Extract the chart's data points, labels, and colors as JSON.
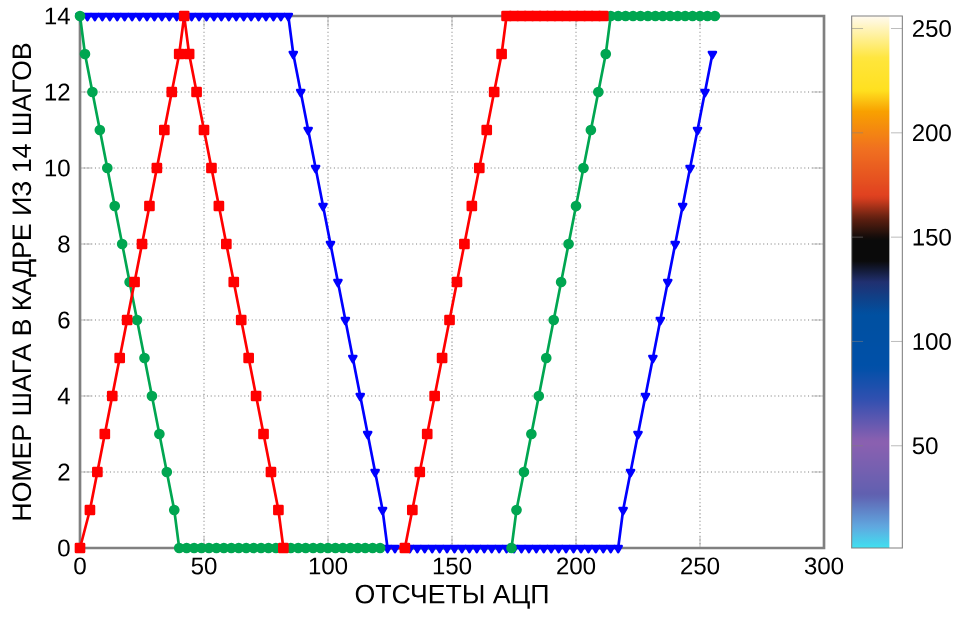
{
  "chart_data": {
    "type": "line",
    "xlabel": "ОТСЧЕТЫ АЦП",
    "ylabel": "НОМЕР ШАГА В КАДРЕ ИЗ 14 ШАГОВ",
    "xlim": [
      0,
      300
    ],
    "ylim": [
      0,
      14
    ],
    "xticks": [
      0,
      50,
      100,
      150,
      200,
      250,
      300
    ],
    "yticks": [
      0,
      2,
      4,
      6,
      8,
      10,
      12,
      14
    ],
    "grid": true,
    "clim": [
      1,
      256
    ],
    "cticks": [
      50,
      100,
      150,
      200,
      250
    ],
    "series": [
      {
        "color": "#0000ff",
        "marker": "triangle",
        "x": [
          0,
          3,
          6,
          9,
          12,
          15,
          18,
          21,
          24,
          27,
          30,
          33,
          36,
          39,
          42,
          45,
          48,
          51,
          54,
          57,
          60,
          63,
          66,
          69,
          72,
          75,
          78,
          81,
          84,
          86,
          89,
          92,
          95,
          98,
          101,
          104,
          107,
          110,
          113,
          116,
          119,
          122,
          124,
          127,
          133,
          136,
          139,
          142,
          145,
          148,
          151,
          154,
          157,
          160,
          163,
          166,
          169,
          172,
          175,
          178,
          181,
          184,
          187,
          190,
          193,
          196,
          199,
          202,
          205,
          208,
          211,
          214,
          217,
          219,
          222,
          225,
          228,
          231,
          234,
          237,
          240,
          243,
          246,
          249,
          252,
          255
        ],
        "values": [
          14,
          14,
          14,
          14,
          14,
          14,
          14,
          14,
          14,
          14,
          14,
          14,
          14,
          14,
          14,
          14,
          14,
          14,
          14,
          14,
          14,
          14,
          14,
          14,
          14,
          14,
          14,
          14,
          14,
          13,
          12,
          11,
          10,
          9,
          8,
          7,
          6,
          5,
          4,
          3,
          2,
          1,
          0,
          0,
          0,
          0,
          0,
          0,
          0,
          0,
          0,
          0,
          0,
          0,
          0,
          0,
          0,
          0,
          0,
          0,
          0,
          0,
          0,
          0,
          0,
          0,
          0,
          0,
          0,
          0,
          0,
          0,
          0,
          1,
          2,
          3,
          4,
          5,
          6,
          7,
          8,
          9,
          10,
          11,
          12,
          13
        ]
      },
      {
        "color": "#00a651",
        "marker": "circle",
        "x": [
          0,
          2,
          5,
          8,
          11,
          14,
          17,
          20,
          23,
          26,
          29,
          32,
          35,
          38,
          40,
          43,
          46,
          49,
          52,
          55,
          58,
          61,
          64,
          67,
          70,
          73,
          76,
          79,
          85,
          88,
          91,
          94,
          97,
          100,
          103,
          106,
          109,
          112,
          115,
          118,
          121,
          174,
          176,
          179,
          182,
          185,
          188,
          191,
          194,
          197,
          200,
          203,
          206,
          209,
          212,
          214,
          217,
          220,
          223,
          226,
          229,
          232,
          235,
          238,
          241,
          244,
          247,
          250,
          253,
          256
        ],
        "values": [
          14,
          13,
          12,
          11,
          10,
          9,
          8,
          7,
          6,
          5,
          4,
          3,
          2,
          1,
          0,
          0,
          0,
          0,
          0,
          0,
          0,
          0,
          0,
          0,
          0,
          0,
          0,
          0,
          0,
          0,
          0,
          0,
          0,
          0,
          0,
          0,
          0,
          0,
          0,
          0,
          0,
          0,
          1,
          2,
          3,
          4,
          5,
          6,
          7,
          8,
          9,
          10,
          11,
          12,
          13,
          14,
          14,
          14,
          14,
          14,
          14,
          14,
          14,
          14,
          14,
          14,
          14,
          14,
          14,
          14
        ]
      },
      {
        "color": "#ff0000",
        "marker": "square",
        "x": [
          0,
          4,
          7,
          10,
          13,
          16,
          19,
          22,
          25,
          28,
          31,
          34,
          37,
          40,
          42,
          44,
          47,
          50,
          53,
          56,
          59,
          62,
          65,
          68,
          71,
          74,
          77,
          80,
          82,
          131,
          134,
          137,
          140,
          143,
          146,
          149,
          152,
          155,
          158,
          161,
          164,
          167,
          170,
          172,
          175,
          178,
          181,
          184,
          187,
          190,
          193,
          196,
          199,
          202,
          205,
          208,
          211
        ],
        "values": [
          0,
          1,
          2,
          3,
          4,
          5,
          6,
          7,
          8,
          9,
          10,
          11,
          12,
          13,
          14,
          13,
          12,
          11,
          10,
          9,
          8,
          7,
          6,
          5,
          4,
          3,
          2,
          1,
          0,
          0,
          1,
          2,
          3,
          4,
          5,
          6,
          7,
          8,
          9,
          10,
          11,
          12,
          13,
          14,
          14,
          14,
          14,
          14,
          14,
          14,
          14,
          14,
          14,
          14,
          14,
          14,
          14
        ]
      }
    ]
  }
}
